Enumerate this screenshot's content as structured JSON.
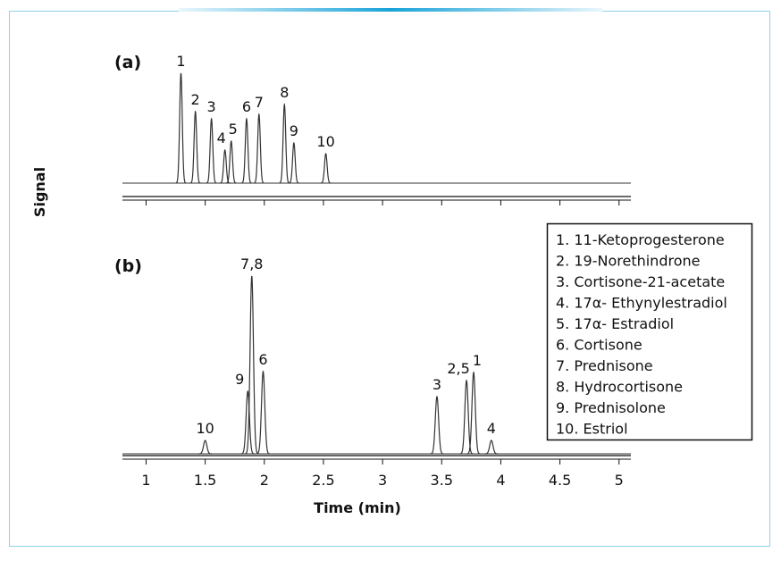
{
  "chart_data": [
    {
      "type": "chromatogram",
      "title": "(a)",
      "color": "#333333",
      "xlim": [
        0.8,
        5.1
      ],
      "xticks": [
        1,
        1.5,
        2,
        2.5,
        3,
        3.5,
        4,
        4.5,
        5
      ],
      "ylim": [
        0,
        135
      ],
      "peaks": [
        {
          "label": "1",
          "x": 1.295,
          "value": 123
        },
        {
          "label": "2",
          "x": 1.417,
          "value": 80
        },
        {
          "label": "3",
          "x": 1.553,
          "value": 72
        },
        {
          "label": "4",
          "x": 1.667,
          "value": 37
        },
        {
          "label": "5",
          "x": 1.72,
          "value": 47
        },
        {
          "label": "6",
          "x": 1.85,
          "value": 72
        },
        {
          "label": "7",
          "x": 1.955,
          "value": 77
        },
        {
          "label": "8",
          "x": 2.17,
          "value": 88
        },
        {
          "label": "9",
          "x": 2.25,
          "value": 45
        },
        {
          "label": "10",
          "x": 2.52,
          "value": 33
        }
      ]
    },
    {
      "type": "chromatogram",
      "title": "(b)",
      "color": "#333333",
      "xlabel": "Time (min)",
      "ylabel": "Signal",
      "xlim": [
        0.8,
        5.1
      ],
      "xticks": [
        1,
        1.5,
        2,
        2.5,
        3,
        3.5,
        4,
        4.5,
        5
      ],
      "ylim": [
        0,
        210
      ],
      "peaks": [
        {
          "label": "10",
          "x": 1.5,
          "value": 15
        },
        {
          "label": "9",
          "x": 1.86,
          "value": 70
        },
        {
          "label": "7,8",
          "x": 1.894,
          "value": 199
        },
        {
          "label": "6",
          "x": 1.99,
          "value": 92
        },
        {
          "label": "3",
          "x": 3.46,
          "value": 64
        },
        {
          "label": "2,5",
          "x": 3.71,
          "value": 82
        },
        {
          "label": "1",
          "x": 3.77,
          "value": 91
        },
        {
          "label": "4",
          "x": 3.92,
          "value": 15
        }
      ],
      "legend": [
        "1. 11-Ketoprogesterone",
        "2. 19-Norethindrone",
        "3. Cortisone-21-acetate",
        "4. 17α- Ethynylestradiol",
        "5. 17α- Estradiol",
        "6. Cortisone",
        "7. Prednisone",
        "8. Hydrocortisone",
        "9. Prednisolone",
        "10. Estriol"
      ]
    }
  ]
}
